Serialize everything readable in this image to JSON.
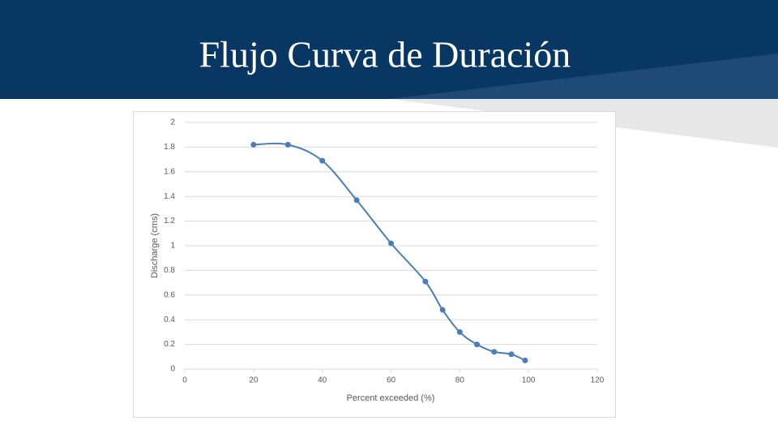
{
  "title": "Flujo Curva de Duración",
  "chart_data": {
    "type": "line",
    "x": [
      20,
      30,
      40,
      50,
      60,
      70,
      75,
      80,
      85,
      90,
      95,
      99
    ],
    "series": [
      {
        "name": "Discharge",
        "color": "#4a7ebb",
        "values": [
          1.82,
          1.82,
          1.69,
          1.37,
          1.02,
          0.71,
          0.48,
          0.3,
          0.2,
          0.14,
          0.12,
          0.07
        ]
      }
    ],
    "xlabel": "Percent exceeded (%)",
    "ylabel": "Discharge (cms)",
    "xlim": [
      0,
      120
    ],
    "xticks": [
      0,
      20,
      40,
      60,
      80,
      100,
      120
    ],
    "ylim": [
      0,
      2
    ],
    "yticks": [
      0,
      0.2,
      0.4,
      0.6,
      0.8,
      1,
      1.2,
      1.4,
      1.6,
      1.8,
      2
    ],
    "grid": true,
    "smooth": true
  }
}
